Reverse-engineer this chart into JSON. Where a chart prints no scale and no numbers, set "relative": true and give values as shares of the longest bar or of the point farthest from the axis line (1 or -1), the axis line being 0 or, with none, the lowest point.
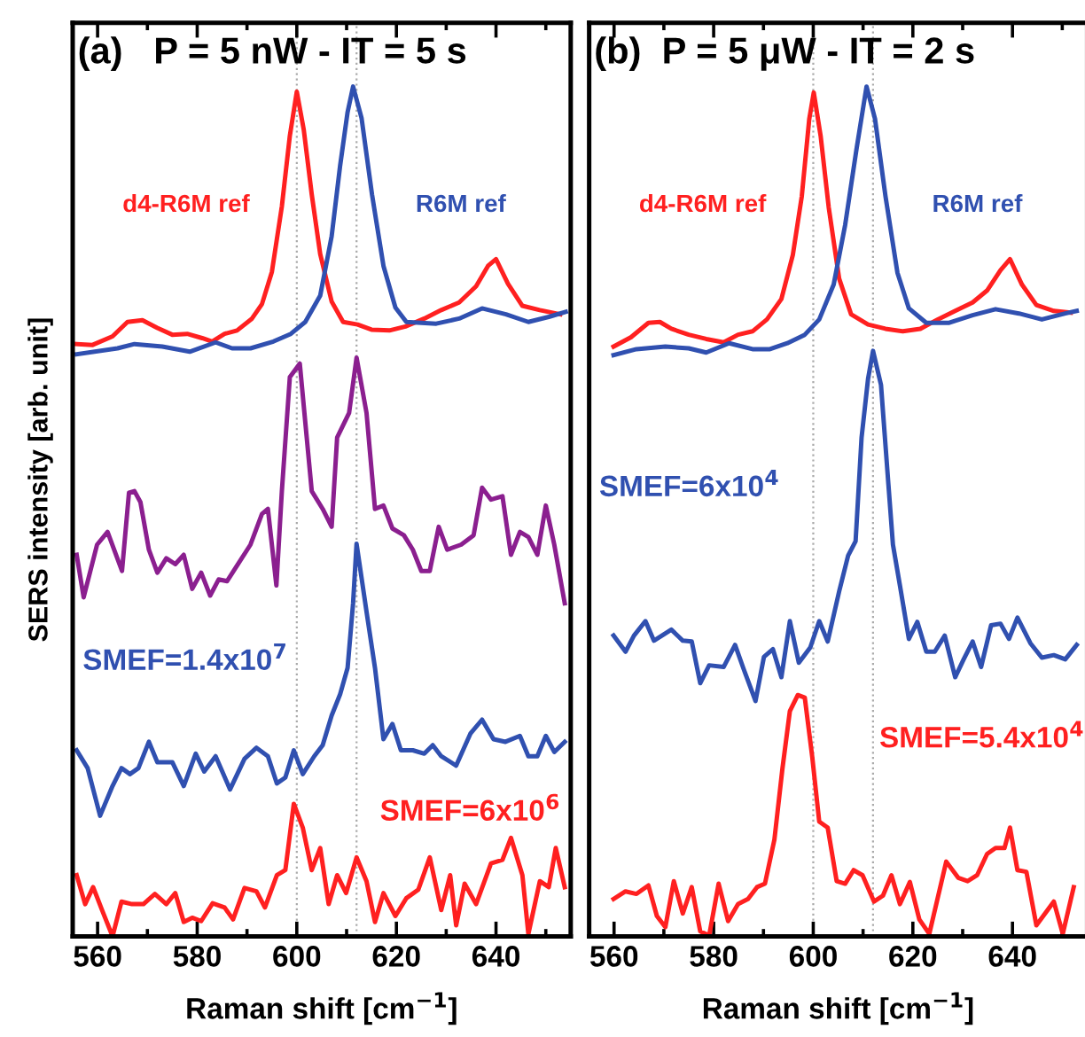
{
  "chart_data": [
    {
      "type": "line",
      "title": "(a)   P = 5 nW - IT = 5 s",
      "xlabel": "Raman shift [cm$^{−1}$]",
      "ylabel": "SERS intensity [arb. unit]",
      "relative": true,
      "tick_labels": "x",
      "xlim": [
        555,
        655
      ],
      "xticks": [
        560,
        580,
        600,
        620,
        640
      ],
      "ref_lines": [
        {
          "axis": "x",
          "value": 600,
          "color": "#aaaaaa",
          "line_style": "dotted"
        },
        {
          "axis": "x",
          "value": 612,
          "color": "#aaaaaa",
          "line_style": "dotted"
        }
      ],
      "series": [
        {
          "name": "d4-R6M ref",
          "color": "#ff2020",
          "x": [
            555.8,
            559,
            563,
            566,
            569,
            572,
            575,
            578,
            581,
            583,
            585.5,
            588,
            591,
            593,
            595,
            597,
            598.6,
            600,
            601.4,
            603,
            604.7,
            607,
            609.3,
            612.2,
            615,
            618.6,
            622,
            625.6,
            629,
            632.6,
            636,
            638.4,
            640,
            642.4,
            645.3,
            648.8,
            652.9
          ],
          "values": [
            0.697,
            0.696,
            0.706,
            0.723,
            0.725,
            0.716,
            0.708,
            0.709,
            0.704,
            0.7,
            0.709,
            0.713,
            0.727,
            0.744,
            0.782,
            0.859,
            0.942,
            0.994,
            0.949,
            0.873,
            0.803,
            0.747,
            0.723,
            0.72,
            0.714,
            0.713,
            0.718,
            0.727,
            0.737,
            0.746,
            0.765,
            0.789,
            0.797,
            0.768,
            0.742,
            0.737,
            0.732
          ]
        },
        {
          "name": "R6M ref",
          "color": "#3050b0",
          "x": [
            555.8,
            564,
            567.4,
            573,
            578.5,
            583.7,
            587,
            590.7,
            595.3,
            598.8,
            601.7,
            604.7,
            607,
            608.7,
            610.2,
            611.3,
            613,
            615.1,
            617.4,
            619.8,
            622,
            628,
            632.6,
            637.2,
            642,
            646.5,
            650.6,
            654
          ],
          "values": [
            0.685,
            0.692,
            0.697,
            0.694,
            0.688,
            0.699,
            0.692,
            0.692,
            0.7,
            0.709,
            0.723,
            0.754,
            0.824,
            0.907,
            0.97,
            1.0,
            0.963,
            0.873,
            0.789,
            0.74,
            0.723,
            0.721,
            0.727,
            0.739,
            0.732,
            0.723,
            0.729,
            0.735
          ]
        },
        {
          "color": "#8b1f8f",
          "x": [
            555.8,
            557.2,
            559.9,
            562,
            564.9,
            566.3,
            567.4,
            568.6,
            570.3,
            572,
            573.8,
            575.6,
            577.3,
            579,
            580.8,
            582.6,
            584.3,
            586,
            588.4,
            590.7,
            593,
            594.2,
            595.9,
            597,
            598.6,
            600.6,
            603,
            605.2,
            607,
            608.1,
            610.5,
            612,
            614,
            615.7,
            617.4,
            619.2,
            621.5,
            623.3,
            625,
            626.7,
            628.5,
            630.2,
            633,
            635.5,
            637.2,
            639,
            641.3,
            643,
            644.8,
            646.5,
            648.3,
            650,
            651.7,
            653.8
          ],
          "values": [
            0.449,
            0.399,
            0.461,
            0.476,
            0.43,
            0.522,
            0.524,
            0.511,
            0.455,
            0.428,
            0.445,
            0.438,
            0.449,
            0.409,
            0.428,
            0.401,
            0.42,
            0.418,
            0.44,
            0.461,
            0.497,
            0.503,
            0.413,
            0.524,
            0.658,
            0.674,
            0.524,
            0.503,
            0.482,
            0.587,
            0.616,
            0.681,
            0.616,
            0.503,
            0.507,
            0.48,
            0.472,
            0.455,
            0.43,
            0.43,
            0.482,
            0.455,
            0.461,
            0.472,
            0.528,
            0.514,
            0.518,
            0.449,
            0.476,
            0.47,
            0.449,
            0.507,
            0.461,
            0.392
          ]
        },
        {
          "name": "SMEF=1.4x10$^{7}$",
          "color": "#3050b0",
          "x": [
            555.8,
            558,
            560.5,
            563,
            564.8,
            566.5,
            568.2,
            570.3,
            572,
            575,
            577.3,
            579.7,
            581.4,
            583.7,
            586.6,
            589.5,
            591.9,
            594.2,
            596,
            597.7,
            599.4,
            601.2,
            603.5,
            605.2,
            607,
            608.7,
            610.2,
            611.3,
            612,
            614,
            615.7,
            617.4,
            619.2,
            620.9,
            623.3,
            625.6,
            627.3,
            629,
            632,
            634.9,
            637.2,
            639.5,
            641.9,
            644.8,
            646.5,
            648.3,
            650,
            651.7,
            653.8
          ],
          "values": [
            0.219,
            0.198,
            0.142,
            0.177,
            0.198,
            0.191,
            0.198,
            0.229,
            0.205,
            0.205,
            0.177,
            0.215,
            0.194,
            0.212,
            0.173,
            0.209,
            0.222,
            0.212,
            0.18,
            0.187,
            0.219,
            0.191,
            0.212,
            0.225,
            0.26,
            0.285,
            0.316,
            0.392,
            0.462,
            0.382,
            0.316,
            0.232,
            0.25,
            0.219,
            0.219,
            0.215,
            0.225,
            0.212,
            0.201,
            0.239,
            0.255,
            0.232,
            0.229,
            0.236,
            0.212,
            0.212,
            0.236,
            0.217,
            0.229
          ]
        },
        {
          "name": "SMEF=6x10$^{6}$",
          "color": "#ff2020",
          "x": [
            555.8,
            557.5,
            559.1,
            560.9,
            563,
            564.8,
            566.9,
            569.2,
            571.5,
            573.8,
            575.6,
            577.3,
            579,
            580.8,
            583.1,
            585.5,
            587.2,
            589.5,
            591.9,
            593.6,
            596,
            597.7,
            599.4,
            601.2,
            603,
            604.7,
            606.4,
            608.1,
            609.9,
            612,
            614,
            615.7,
            617.4,
            619.8,
            622,
            624.4,
            626.7,
            629,
            630.8,
            632,
            633.7,
            636,
            639,
            641.3,
            643,
            645.3,
            646.5,
            648.8,
            650.6,
            652,
            653.8
          ],
          "values": [
            0.072,
            0.038,
            0.058,
            0.031,
            0.0,
            0.041,
            0.038,
            0.038,
            0.05,
            0.038,
            0.051,
            0.017,
            0.022,
            0.018,
            0.039,
            0.034,
            0.02,
            0.057,
            0.053,
            0.034,
            0.072,
            0.078,
            0.156,
            0.128,
            0.078,
            0.104,
            0.038,
            0.072,
            0.051,
            0.093,
            0.065,
            0.017,
            0.051,
            0.024,
            0.045,
            0.055,
            0.093,
            0.031,
            0.072,
            0.013,
            0.062,
            0.038,
            0.086,
            0.09,
            0.116,
            0.072,
            0.003,
            0.065,
            0.058,
            0.104,
            0.058
          ]
        }
      ]
    },
    {
      "type": "line",
      "title": "(b)  P = 5 μW - IT = 2 s",
      "xlabel": "Raman shift [cm$^{−1}$]",
      "relative": true,
      "tick_labels": "x",
      "xlim": [
        555,
        655
      ],
      "xticks": [
        560,
        580,
        600,
        620,
        640
      ],
      "ref_lines": [
        {
          "axis": "x",
          "value": 600,
          "color": "#aaaaaa",
          "line_style": "dotted"
        },
        {
          "axis": "x",
          "value": 612,
          "color": "#aaaaaa",
          "line_style": "dotted"
        }
      ],
      "series": [
        {
          "name": "d4-R6M ref",
          "color": "#ff2020",
          "x": [
            559.9,
            563.4,
            566.9,
            569.2,
            571.5,
            575,
            578.5,
            582,
            584.9,
            587.8,
            590.7,
            593.6,
            595.9,
            597.7,
            599.2,
            600.1,
            601.5,
            603.1,
            605.2,
            607.6,
            611,
            614.5,
            618,
            621.5,
            625,
            628.5,
            632,
            634.9,
            637.6,
            639.5,
            641.9,
            644.8,
            648.3,
            651.7
          ],
          "values": [
            0.694,
            0.705,
            0.722,
            0.723,
            0.715,
            0.708,
            0.703,
            0.699,
            0.708,
            0.712,
            0.726,
            0.75,
            0.802,
            0.871,
            0.962,
            0.993,
            0.941,
            0.858,
            0.774,
            0.732,
            0.72,
            0.715,
            0.712,
            0.715,
            0.726,
            0.736,
            0.746,
            0.76,
            0.784,
            0.797,
            0.767,
            0.743,
            0.736,
            0.734
          ]
        },
        {
          "name": "R6M ref",
          "color": "#3050b0",
          "x": [
            559.9,
            564.5,
            570.3,
            575,
            578.5,
            583.1,
            587.8,
            591.3,
            594.8,
            598.3,
            601.2,
            604.1,
            606.4,
            608.7,
            610.7,
            612.4,
            614.5,
            616.9,
            619.2,
            622.7,
            627.3,
            632,
            636.6,
            641.3,
            645.9,
            650.6,
            652.9
          ],
          "values": [
            0.684,
            0.691,
            0.694,
            0.692,
            0.687,
            0.698,
            0.691,
            0.691,
            0.698,
            0.708,
            0.726,
            0.767,
            0.837,
            0.927,
            1.0,
            0.962,
            0.871,
            0.781,
            0.739,
            0.722,
            0.722,
            0.731,
            0.738,
            0.733,
            0.726,
            0.733,
            0.736
          ]
        },
        {
          "name": "SMEF=6x10$^{4}$",
          "color": "#3050b0",
          "x": [
            559.9,
            562.3,
            564,
            566.3,
            568,
            571.5,
            573.8,
            575.6,
            577.3,
            579.1,
            582,
            584.3,
            586,
            588.4,
            590.1,
            591.9,
            593.6,
            595.3,
            597.1,
            599.4,
            601.2,
            602.9,
            605.2,
            607,
            608.5,
            609.7,
            611,
            612,
            613.6,
            615.1,
            616,
            617.4,
            619.2,
            620.9,
            622.7,
            624.4,
            626.4,
            628.5,
            630.2,
            632,
            633.7,
            635.7,
            637.6,
            639.3,
            641,
            643.6,
            645.9,
            648.3,
            650.6,
            652.9
          ],
          "values": [
            0.354,
            0.335,
            0.354,
            0.371,
            0.348,
            0.361,
            0.348,
            0.347,
            0.298,
            0.319,
            0.317,
            0.343,
            0.315,
            0.277,
            0.329,
            0.338,
            0.305,
            0.371,
            0.322,
            0.34,
            0.371,
            0.347,
            0.406,
            0.448,
            0.465,
            0.587,
            0.656,
            0.689,
            0.649,
            0.531,
            0.461,
            0.413,
            0.35,
            0.37,
            0.335,
            0.335,
            0.354,
            0.305,
            0.326,
            0.347,
            0.317,
            0.366,
            0.368,
            0.35,
            0.375,
            0.345,
            0.328,
            0.331,
            0.326,
            0.343
          ]
        },
        {
          "name": "SMEF=5.4x10$^{4}$",
          "color": "#ff2020",
          "x": [
            559.9,
            562.3,
            564.5,
            566.9,
            568.6,
            570.3,
            572,
            573.8,
            575.6,
            577.3,
            579.1,
            581,
            582.9,
            584.9,
            586.9,
            588.7,
            590.3,
            592.2,
            593.8,
            595.3,
            596.9,
            598.3,
            599.8,
            601.2,
            602.9,
            604.7,
            606.4,
            608.1,
            609.9,
            612.2,
            614,
            615.7,
            617.4,
            619.4,
            621.3,
            623.3,
            626.7,
            629.1,
            631,
            632.9,
            634.9,
            636.6,
            638.4,
            639.5,
            641,
            642.8,
            644.8,
            648.3,
            650.1,
            652.3
          ],
          "values": [
            0.044,
            0.053,
            0.05,
            0.06,
            0.024,
            0.011,
            0.065,
            0.027,
            0.058,
            0.006,
            0.001,
            0.062,
            0.018,
            0.038,
            0.044,
            0.058,
            0.062,
            0.114,
            0.197,
            0.265,
            0.284,
            0.281,
            0.211,
            0.135,
            0.128,
            0.065,
            0.062,
            0.078,
            0.072,
            0.041,
            0.048,
            0.072,
            0.038,
            0.064,
            0.02,
            0.003,
            0.088,
            0.069,
            0.065,
            0.072,
            0.097,
            0.104,
            0.104,
            0.128,
            0.078,
            0.076,
            0.013,
            0.041,
            0.003,
            0.058
          ]
        }
      ]
    }
  ]
}
